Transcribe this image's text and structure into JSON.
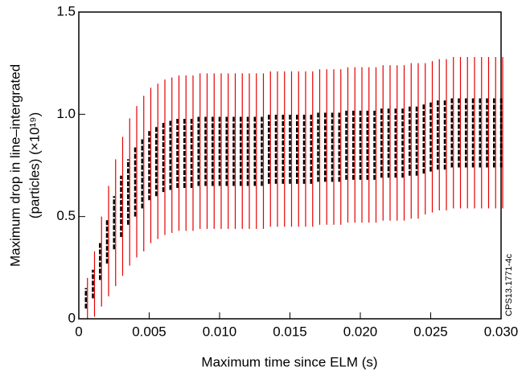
{
  "chart_data": {
    "type": "errorbar",
    "xlabel": "Maximum time since ELM (s)",
    "ylabel": [
      "Maximum drop in line–intergrated",
      "(particles) (×10¹⁹)"
    ],
    "annotation": "CPS13.1771-4c",
    "xlim": [
      0,
      0.03
    ],
    "ylim": [
      0,
      1.5
    ],
    "xticks": [
      0,
      0.005,
      {
        "value": 0.01,
        "label": "0.010"
      },
      0.015,
      {
        "value": 0.02,
        "label": "0.020"
      },
      0.025,
      {
        "value": 0.03,
        "label": "0.030"
      }
    ],
    "yticks": [
      0,
      0.5,
      {
        "value": 1.0,
        "label": "1.0"
      },
      1.5
    ],
    "color": "#000000",
    "error_color": "#e60000",
    "x": [
      0.0005,
      0.001,
      0.0015,
      0.002,
      0.0025,
      0.003,
      0.0035,
      0.004,
      0.0045,
      0.005,
      0.0055,
      0.006,
      0.0065,
      0.007,
      0.0075,
      0.008,
      0.0085,
      0.009,
      0.0095,
      0.01,
      0.0105,
      0.011,
      0.0115,
      0.012,
      0.0125,
      0.013,
      0.0135,
      0.014,
      0.0145,
      0.015,
      0.0155,
      0.016,
      0.0165,
      0.017,
      0.0175,
      0.018,
      0.0185,
      0.019,
      0.0195,
      0.02,
      0.0205,
      0.021,
      0.0215,
      0.022,
      0.0225,
      0.023,
      0.0235,
      0.024,
      0.0245,
      0.025,
      0.0255,
      0.026,
      0.0265,
      0.027,
      0.0275,
      0.028,
      0.0285,
      0.029,
      0.0295,
      0.03
    ],
    "values": [
      0.1,
      0.17,
      0.28,
      0.38,
      0.47,
      0.55,
      0.62,
      0.67,
      0.71,
      0.75,
      0.77,
      0.79,
      0.8,
      0.81,
      0.81,
      0.81,
      0.82,
      0.82,
      0.82,
      0.82,
      0.82,
      0.82,
      0.82,
      0.82,
      0.82,
      0.82,
      0.83,
      0.83,
      0.83,
      0.83,
      0.83,
      0.83,
      0.83,
      0.84,
      0.84,
      0.84,
      0.84,
      0.85,
      0.85,
      0.85,
      0.85,
      0.85,
      0.86,
      0.86,
      0.86,
      0.86,
      0.87,
      0.87,
      0.88,
      0.89,
      0.9,
      0.9,
      0.91,
      0.91,
      0.91,
      0.91,
      0.91,
      0.91,
      0.91,
      0.91
    ],
    "errors": [
      0.1,
      0.16,
      0.22,
      0.27,
      0.31,
      0.34,
      0.36,
      0.37,
      0.38,
      0.38,
      0.38,
      0.38,
      0.38,
      0.38,
      0.38,
      0.38,
      0.38,
      0.38,
      0.38,
      0.38,
      0.38,
      0.38,
      0.38,
      0.38,
      0.38,
      0.38,
      0.38,
      0.38,
      0.38,
      0.38,
      0.38,
      0.38,
      0.38,
      0.38,
      0.38,
      0.38,
      0.38,
      0.38,
      0.38,
      0.38,
      0.38,
      0.38,
      0.38,
      0.38,
      0.38,
      0.38,
      0.38,
      0.38,
      0.37,
      0.37,
      0.37,
      0.37,
      0.37,
      0.37,
      0.37,
      0.37,
      0.37,
      0.37,
      0.37,
      0.37
    ],
    "spread_errors": [
      0.05,
      0.07,
      0.09,
      0.11,
      0.13,
      0.15,
      0.16,
      0.17,
      0.17,
      0.17,
      0.17,
      0.17,
      0.17,
      0.17,
      0.17,
      0.17,
      0.17,
      0.17,
      0.17,
      0.17,
      0.17,
      0.17,
      0.17,
      0.17,
      0.17,
      0.17,
      0.17,
      0.17,
      0.17,
      0.17,
      0.17,
      0.17,
      0.17,
      0.17,
      0.17,
      0.17,
      0.17,
      0.17,
      0.17,
      0.17,
      0.17,
      0.17,
      0.17,
      0.17,
      0.17,
      0.17,
      0.17,
      0.17,
      0.17,
      0.17,
      0.17,
      0.17,
      0.17,
      0.17,
      0.17,
      0.17,
      0.17,
      0.17,
      0.17,
      0.17
    ]
  }
}
